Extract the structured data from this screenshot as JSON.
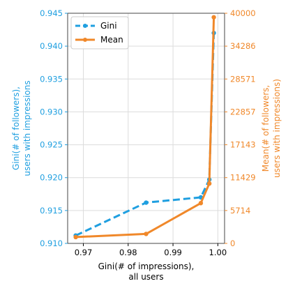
{
  "chart_data": {
    "type": "line",
    "xlabel": [
      "Gini(# of impressions),",
      "all users"
    ],
    "ylabel_left": [
      "Gini(# of followers),",
      "users with impressions"
    ],
    "ylabel_right": [
      "Mean(# of followers,",
      "users with impressions)"
    ],
    "xlim": [
      0.9665,
      1.0015
    ],
    "ylim_left": [
      0.91,
      0.945
    ],
    "ylim_right": [
      0,
      40000
    ],
    "x_ticks": [
      0.97,
      0.98,
      0.99,
      1.0
    ],
    "x_tick_labels": [
      "0.97",
      "0.98",
      "0.99",
      "1.00"
    ],
    "y_left_ticks": [
      0.91,
      0.915,
      0.92,
      0.925,
      0.93,
      0.935,
      0.94,
      0.945
    ],
    "y_left_tick_labels": [
      "0.910",
      "0.915",
      "0.920",
      "0.925",
      "0.930",
      "0.935",
      "0.940",
      "0.945"
    ],
    "y_right_ticks": [
      0,
      5714,
      11429,
      17143,
      22857,
      28571,
      34286,
      40000
    ],
    "y_right_tick_labels": [
      "0",
      "5714",
      "11429",
      "17143",
      "22857",
      "28571",
      "34286",
      "40000"
    ],
    "grid": true,
    "legend_position": "top-left",
    "series": [
      {
        "name": "Gini",
        "axis": "left",
        "color": "#1f9fe0",
        "style": "dashed",
        "x": [
          0.9683,
          0.984,
          0.9962,
          0.9981,
          0.9991
        ],
        "y": [
          0.9112,
          0.9162,
          0.917,
          0.9197,
          0.942
        ]
      },
      {
        "name": "Mean",
        "axis": "right",
        "color": "#f0882a",
        "style": "solid",
        "x": [
          0.9683,
          0.984,
          0.9962,
          0.9981,
          0.9991
        ],
        "y": [
          1100,
          1650,
          7000,
          10400,
          39300
        ]
      }
    ],
    "colors": {
      "left_axis": "#1f9fe0",
      "right_axis": "#f0882a",
      "grid": "#dcdcdc",
      "spine": "#444444"
    }
  }
}
